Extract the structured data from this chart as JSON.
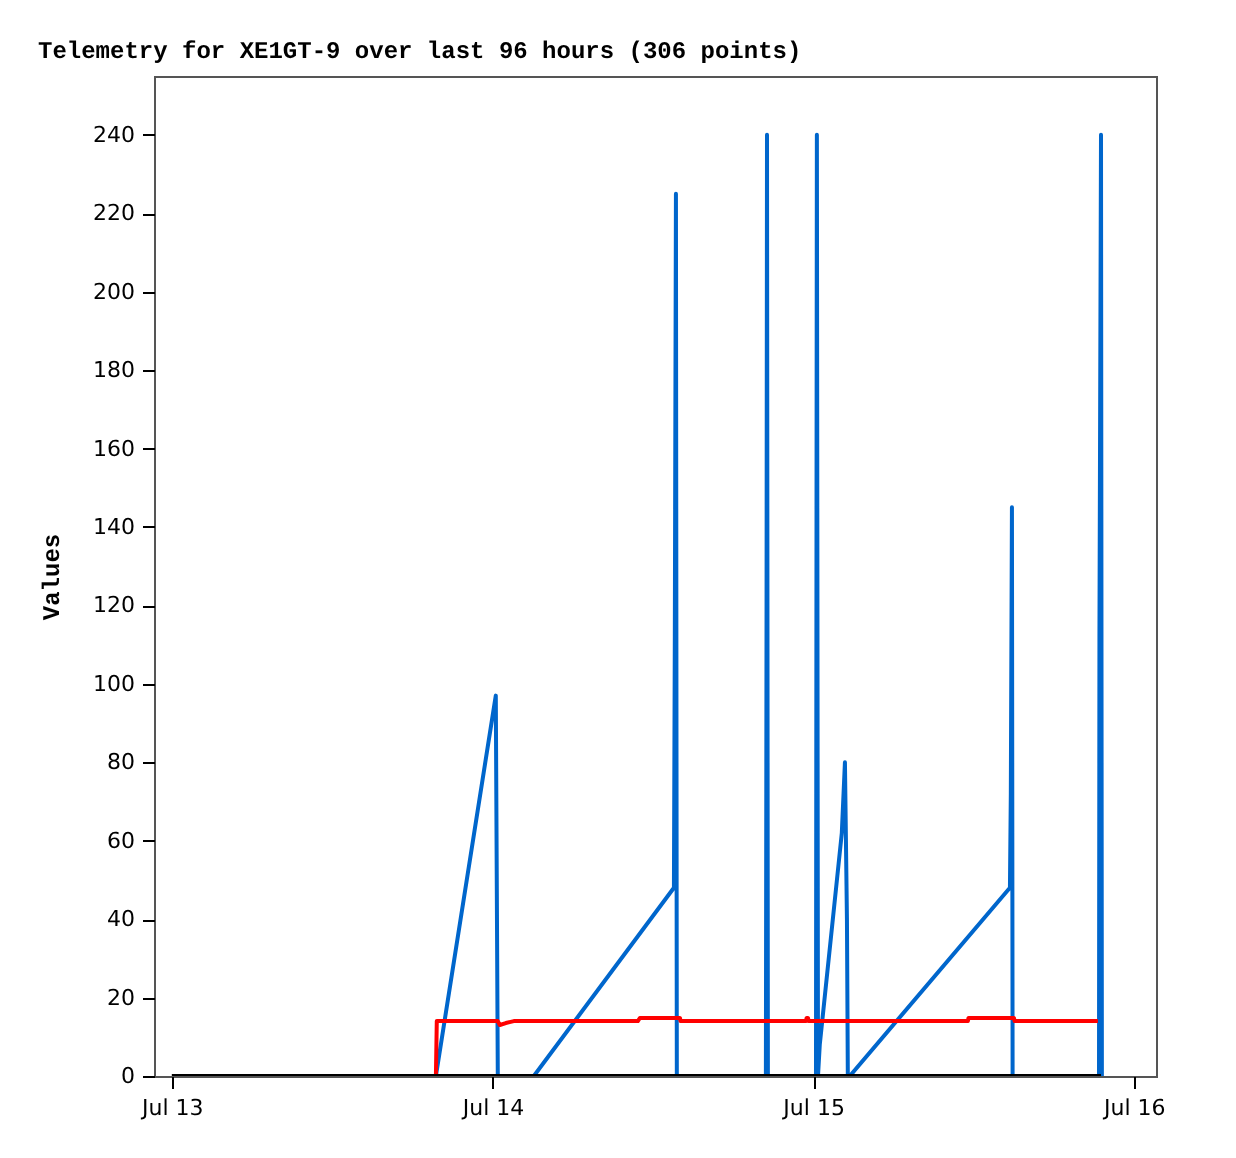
{
  "chart_data": {
    "type": "line",
    "title": "Telemetry for XE1GT-9 over last 96 hours (306 points)",
    "ylabel": "Values",
    "xlim": [
      "--07-12T22:40",
      "--07-16T01:40"
    ],
    "ylim": [
      0,
      255
    ],
    "xticks": [
      {
        "value": "--07-13T00:00",
        "label": "Jul 13"
      },
      {
        "value": "--07-14T00:00",
        "label": "Jul 14"
      },
      {
        "value": "--07-15T00:00",
        "label": "Jul 15"
      },
      {
        "value": "--07-16T00:00",
        "label": "Jul 16"
      }
    ],
    "yticks": [
      0,
      20,
      40,
      60,
      80,
      100,
      120,
      140,
      160,
      180,
      200,
      220,
      240
    ],
    "grid": false,
    "marker": "none",
    "line_style": "solid",
    "series": [
      {
        "color": "#0066cc",
        "x": [
          "--07-13T19:46",
          "--07-14T00:15",
          "--07-14T00:24",
          "--07-14T03:06",
          "--07-14T13:35",
          "--07-14T13:39",
          "--07-14T13:44",
          "--07-14T13:48",
          "--07-14T20:28",
          "--07-14T20:31",
          "--07-14T20:33",
          "--07-14T20:37",
          "--07-15T00:13",
          "--07-15T00:17",
          "--07-15T00:22",
          "--07-15T00:30",
          "--07-15T02:09",
          "--07-15T02:23",
          "--07-15T02:32",
          "--07-15T02:36",
          "--07-15T02:45",
          "--07-15T14:44",
          "--07-15T14:48",
          "--07-15T14:53",
          "--07-15T14:56",
          "--07-15T21:24",
          "--07-15T21:26",
          "--07-15T21:33",
          "--07-15T21:37"
        ],
        "values": [
          0,
          97,
          0,
          0,
          48,
          112,
          225,
          0,
          0,
          121,
          240,
          0,
          0,
          240,
          0,
          8,
          62,
          80,
          40,
          0,
          0,
          48,
          72,
          145,
          0,
          0,
          112,
          240,
          0
        ]
      },
      {
        "color": "#ff0000",
        "x": [
          "--07-13T19:46",
          "--07-13T19:50",
          "--07-14T00:24",
          "--07-14T00:33",
          "--07-14T01:00",
          "--07-14T01:36",
          "--07-14T10:53",
          "--07-14T11:02",
          "--07-14T14:02",
          "--07-14T14:05",
          "--07-14T23:28",
          "--07-14T23:31",
          "--07-14T23:37",
          "--07-14T23:40",
          "--07-15T11:35",
          "--07-15T11:38",
          "--07-15T15:02",
          "--07-15T15:05",
          "--07-15T21:19"
        ],
        "values": [
          0,
          14,
          14,
          13,
          13.5,
          14,
          14,
          14.8,
          14.8,
          14,
          14,
          14.8,
          14.8,
          14,
          14,
          14.8,
          14.8,
          14,
          14
        ]
      },
      {
        "color": "#000000",
        "x": [
          "--07-13T00:00",
          "--07-15T21:33"
        ],
        "values": [
          0,
          0
        ]
      }
    ]
  }
}
